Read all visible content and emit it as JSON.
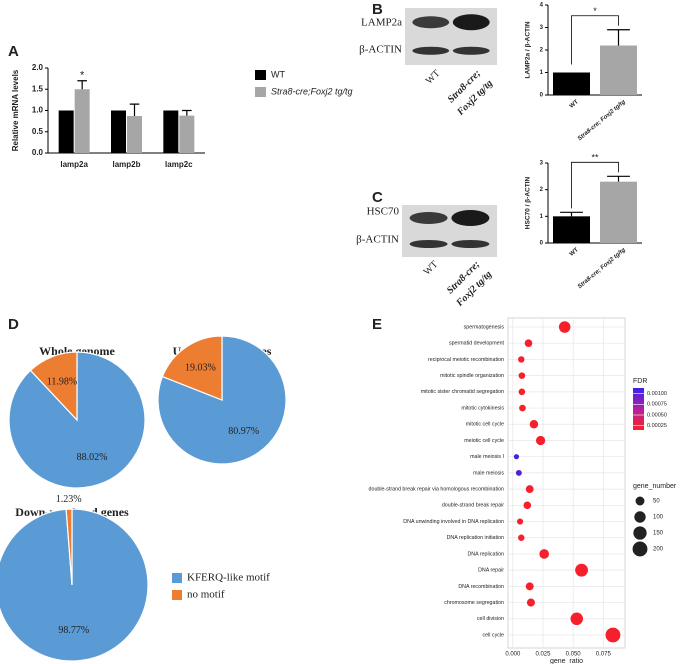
{
  "chart_data": [
    {
      "type": "bar",
      "panel_label": "A",
      "ylabel": "Relative mRNA levels",
      "categories": [
        "lamp2a",
        "lamp2b",
        "lamp2c"
      ],
      "series": [
        {
          "name": "WT",
          "color": "#000000",
          "values": [
            1,
            1,
            1
          ],
          "errors": [
            0,
            0,
            0
          ]
        },
        {
          "name": "Stra8-cre;Foxj2 tg/tg",
          "color": "#a6a6a6",
          "values": [
            1.5,
            0.87,
            0.88
          ],
          "errors": [
            0.2,
            0.28,
            0.12
          ]
        }
      ],
      "ylim": [
        0,
        2
      ],
      "yticks": [
        {
          "value": 0,
          "label": "0.0"
        },
        0.5,
        {
          "value": 1,
          "label": "1.0"
        },
        1.5,
        {
          "value": 2,
          "label": "2.0"
        }
      ],
      "significance": {
        "text": "*",
        "category": 0,
        "series": 1
      },
      "legend": "right"
    },
    {
      "type": "bar",
      "panel_label": "B",
      "ylabel": "LAMP2a / β-ACTIN",
      "blot": {
        "bands": [
          "LAMP2a",
          "β-ACTIN"
        ],
        "lanes": [
          {
            "lines": [
              "WT"
            ]
          },
          {
            "lines": [
              "Stra8-cre;",
              "Foxj2 tg/tg"
            ]
          }
        ]
      },
      "categories": [
        "WT",
        "Stra8-cre; Foxj2 tg/tg"
      ],
      "colors": [
        "#000000",
        "#a6a6a6"
      ],
      "series": [
        {
          "values": [
            1,
            2.2
          ],
          "errors": [
            0,
            0.7
          ]
        }
      ],
      "ylim": [
        0,
        4
      ],
      "yticks": [
        0,
        1,
        2,
        3,
        4
      ],
      "significance": {
        "text": "*"
      }
    },
    {
      "type": "bar",
      "panel_label": "C",
      "ylabel": "HSC70 / β-ACTIN",
      "blot": {
        "bands": [
          "HSC70",
          "β-ACTIN"
        ],
        "lanes": [
          {
            "lines": [
              "WT"
            ]
          },
          {
            "lines": [
              "Stra8-cre;",
              "Foxj2 tg/tg"
            ]
          }
        ]
      },
      "categories": [
        "WT",
        "Stra8-cre; Foxj2 tg/tg"
      ],
      "colors": [
        "#000000",
        "#a6a6a6"
      ],
      "series": [
        {
          "values": [
            1,
            2.3
          ],
          "errors": [
            0.15,
            0.2
          ]
        }
      ],
      "ylim": [
        0,
        3
      ],
      "yticks": [
        0,
        1,
        2,
        3
      ],
      "significance": {
        "text": "**"
      }
    },
    {
      "type": "pie",
      "panel_label": "D",
      "title": "Whole genome",
      "categories": [
        "KFERQ-like motif",
        "no motif"
      ],
      "colors": [
        "#5b9bd5",
        "#ed7d31"
      ],
      "values": [
        88.02,
        11.98
      ],
      "value_labels": [
        "88.02%",
        "11.98%"
      ]
    },
    {
      "type": "pie",
      "title": "Up-regulated genes",
      "categories": [
        "KFERQ-like motif",
        "no motif"
      ],
      "colors": [
        "#5b9bd5",
        "#ed7d31"
      ],
      "values": [
        80.97,
        19.03
      ],
      "value_labels": [
        "80.97%",
        "19.03%"
      ]
    },
    {
      "type": "pie",
      "title": "Down-regulated genes",
      "categories": [
        "KFERQ-like motif",
        "no motif"
      ],
      "colors": [
        "#5b9bd5",
        "#ed7d31"
      ],
      "values": [
        98.77,
        1.23
      ],
      "value_labels": [
        "98.77%",
        "1.23%"
      ],
      "legend": "right"
    },
    {
      "type": "scatter",
      "panel_label": "E",
      "xlabel": "gene_ratio",
      "categories": [
        "spermatogenesis",
        "spermatid development",
        "reciprocal meiotic recombination",
        "mitotic spindle organization",
        "mitotic sister chromatid segregation",
        "mitotic cytokinesis",
        "mitotic cell cycle",
        "meiotic cell cycle",
        "male meiosis I",
        "male meiosis",
        "double-strand break repair via homologous recombination",
        "double-strand break repair",
        "DNA unwinding involved in DNA replication",
        "DNA replication initiation",
        "DNA replication",
        "DNA repair",
        "DNA recombination",
        "chromosome segregation",
        "cell division",
        "cell cycle"
      ],
      "x": [
        0.043,
        0.013,
        0.007,
        0.0075,
        0.0075,
        0.008,
        0.0175,
        0.023,
        0.003,
        0.005,
        0.014,
        0.012,
        0.006,
        0.007,
        0.026,
        0.057,
        0.014,
        0.015,
        0.053,
        0.083
      ],
      "size": [
        103,
        31,
        17,
        18,
        18,
        19,
        42,
        55,
        7,
        12,
        34,
        29,
        14,
        17,
        62,
        137,
        34,
        36,
        127,
        199
      ],
      "color_values": [
        0.0002,
        0.0002,
        0.0002,
        0.0002,
        0.0002,
        0.0002,
        0.0002,
        0.0002,
        0.00108,
        0.00102,
        0.0002,
        0.0002,
        0.0002,
        0.0002,
        0.0002,
        0.0002,
        0.0002,
        0.0002,
        0.0002,
        0.0002
      ],
      "xlim": [
        -0.004,
        0.093
      ],
      "xticks": [
        {
          "value": 0,
          "label": "0.000"
        },
        0.025,
        {
          "value": 0.05,
          "label": "0.050"
        },
        0.075
      ],
      "grid": true,
      "color_title": "FDR",
      "color_lim": [
        0.00015,
        0.00113
      ],
      "color_range": [
        "#ff2020",
        "#3b20f0"
      ],
      "color_ticks": [
        {
          "value": 0.001,
          "label": "0.00100"
        },
        {
          "value": 0.00075,
          "label": "0.00075"
        },
        {
          "value": 0.0005,
          "label": "0.00050"
        },
        {
          "value": 0.00025,
          "label": "0.00025"
        }
      ],
      "size_title": "gene_number",
      "size_ticks": [
        50,
        100,
        150,
        200
      ]
    }
  ]
}
